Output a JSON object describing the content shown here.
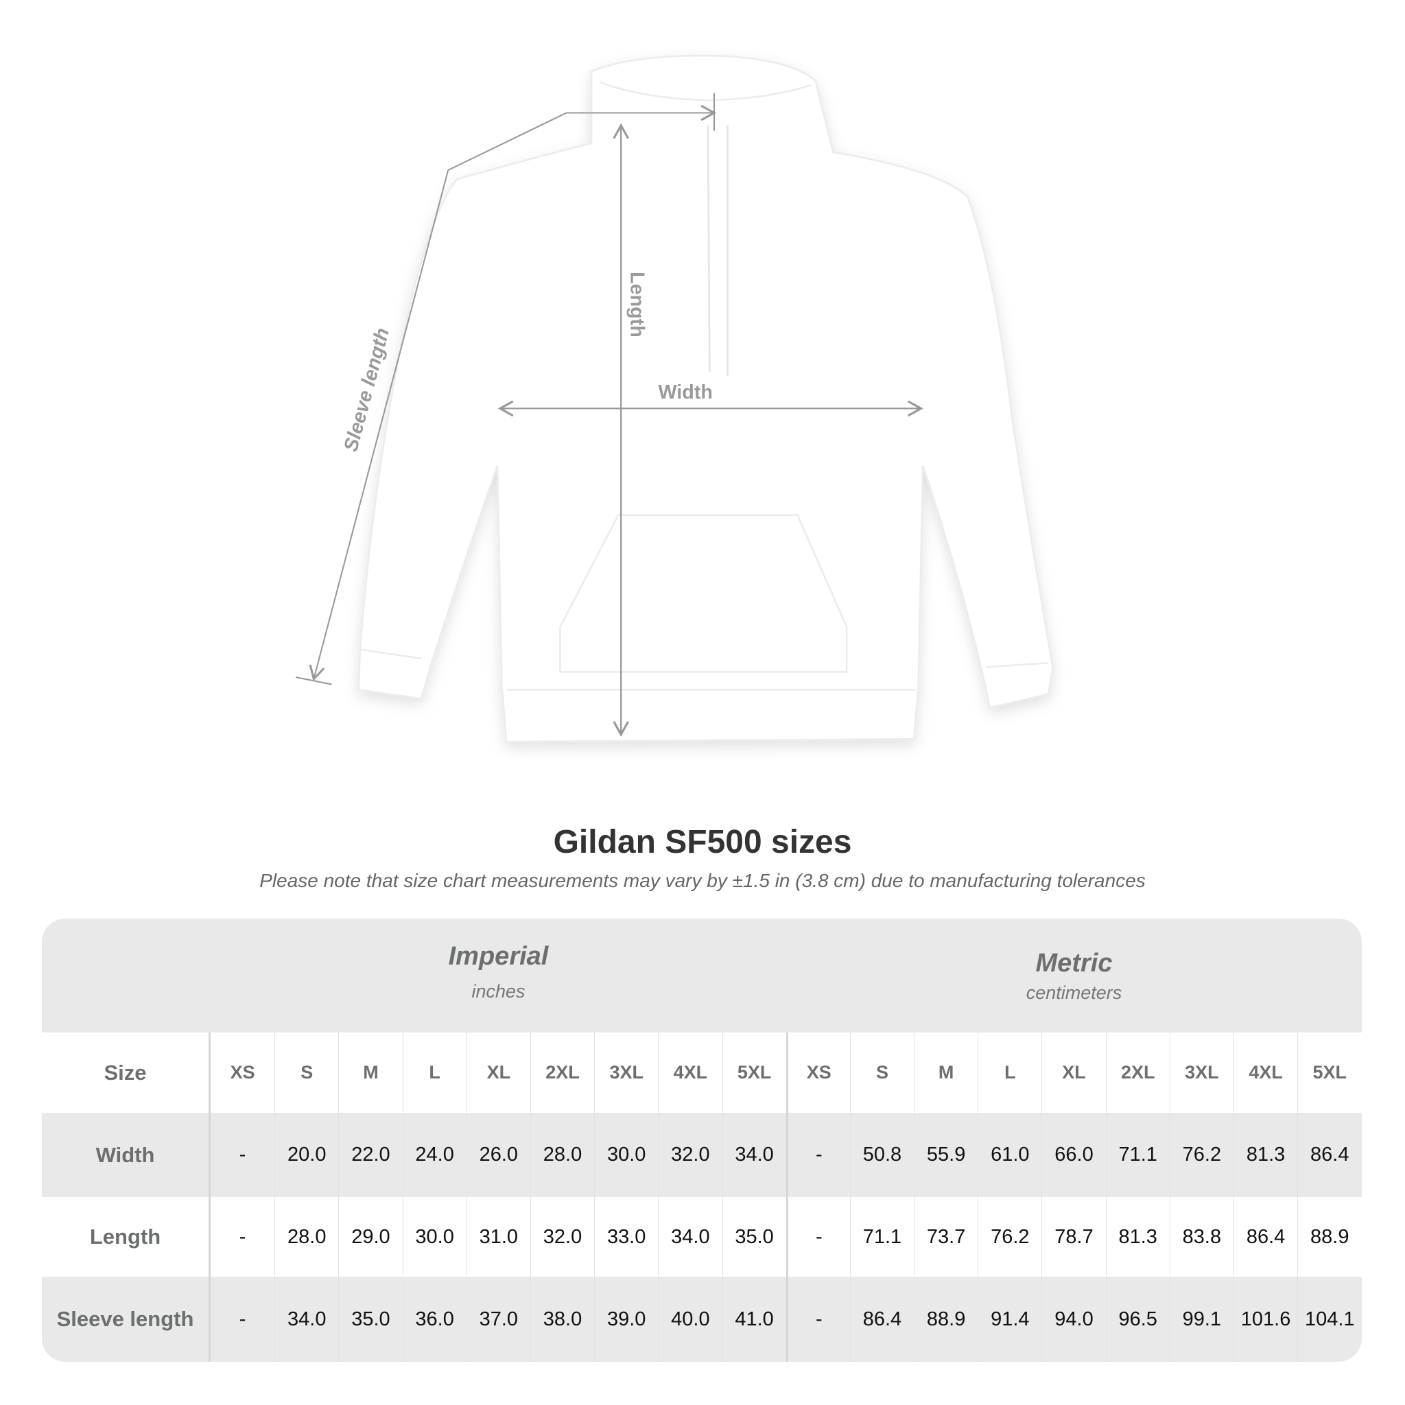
{
  "diagram": {
    "labels": {
      "length": "Length",
      "width": "Width",
      "sleeve": "Sleeve length"
    },
    "line_color": "#999999"
  },
  "title": "Gildan SF500 sizes",
  "note": "Please note that size chart measurements may vary by ±1.5 in (3.8 cm) due to manufacturing tolerances",
  "table": {
    "imperial": {
      "name": "Imperial",
      "unit": "inches"
    },
    "metric": {
      "name": "Metric",
      "unit": "centimeters"
    },
    "size_label": "Size",
    "sizes": [
      "XS",
      "S",
      "M",
      "L",
      "XL",
      "2XL",
      "3XL",
      "4XL",
      "5XL"
    ],
    "rows": [
      {
        "label": "Width",
        "imperial": [
          "-",
          "20.0",
          "22.0",
          "24.0",
          "26.0",
          "28.0",
          "30.0",
          "32.0",
          "34.0"
        ],
        "metric": [
          "-",
          "50.8",
          "55.9",
          "61.0",
          "66.0",
          "71.1",
          "76.2",
          "81.3",
          "86.4"
        ]
      },
      {
        "label": "Length",
        "imperial": [
          "-",
          "28.0",
          "29.0",
          "30.0",
          "31.0",
          "32.0",
          "33.0",
          "34.0",
          "35.0"
        ],
        "metric": [
          "-",
          "71.1",
          "73.7",
          "76.2",
          "78.7",
          "81.3",
          "83.8",
          "86.4",
          "88.9"
        ]
      },
      {
        "label": "Sleeve length",
        "imperial": [
          "-",
          "34.0",
          "35.0",
          "36.0",
          "37.0",
          "38.0",
          "39.0",
          "40.0",
          "41.0"
        ],
        "metric": [
          "-",
          "86.4",
          "88.9",
          "91.4",
          "94.0",
          "96.5",
          "99.1",
          "101.6",
          "104.1"
        ]
      }
    ]
  }
}
